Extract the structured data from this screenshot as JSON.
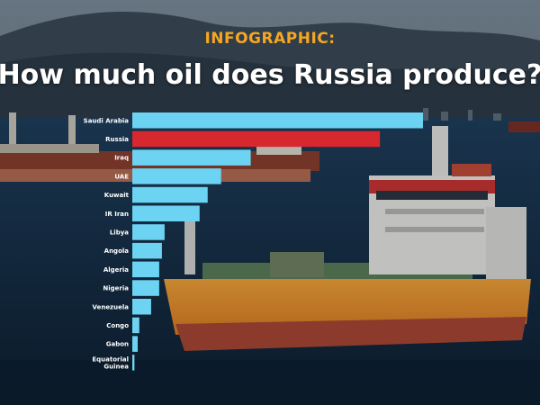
{
  "header": {
    "kicker": "INFOGRAPHIC:",
    "title": "How much oil does Russia produce?"
  },
  "colors": {
    "default_bar": "#6dd3f2",
    "highlight_bar": "#d7282f",
    "kicker": "#f5a623"
  },
  "chart_data": {
    "type": "bar",
    "orientation": "horizontal",
    "categories": [
      "Saudi Arabia",
      "Russia",
      "Iraq",
      "UAE",
      "Kuwait",
      "IR Iran",
      "Libya",
      "Angola",
      "Algeria",
      "Nigeria",
      "Venezuela",
      "Congo",
      "Gabon",
      "Equatorial Guinea"
    ],
    "values": [
      10.8,
      9.2,
      4.4,
      3.3,
      2.8,
      2.5,
      1.2,
      1.1,
      1.0,
      1.0,
      0.7,
      0.26,
      0.2,
      0.08
    ],
    "highlight": "Russia",
    "xlim": [
      0,
      10.8
    ],
    "grid": false,
    "legend": "none"
  }
}
